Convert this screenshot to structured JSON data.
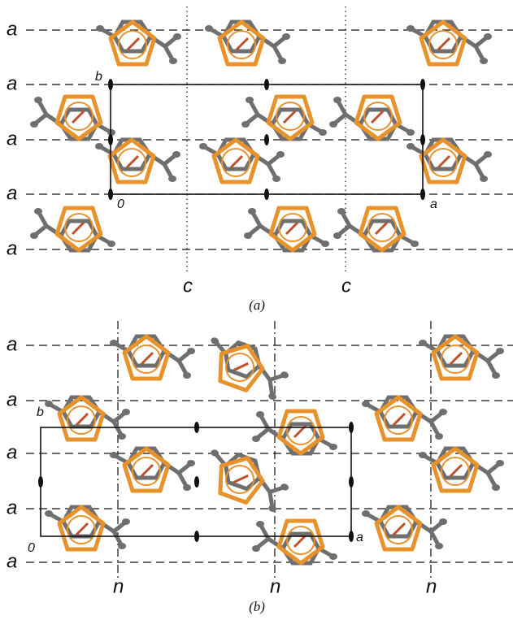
{
  "panel_a": {
    "plane_labels": [
      "a",
      "a",
      "a",
      "a",
      "a"
    ],
    "glide_labels": [
      "c",
      "c"
    ],
    "axis_labels": [
      "b",
      "0",
      "a"
    ],
    "caption": "(a)"
  },
  "panel_b": {
    "plane_labels": [
      "a",
      "a",
      "a",
      "a",
      "a"
    ],
    "glide_labels": [
      "n",
      "n",
      "n"
    ],
    "axis_labels": [
      "b",
      "0",
      "a"
    ],
    "caption": "(b)"
  }
}
